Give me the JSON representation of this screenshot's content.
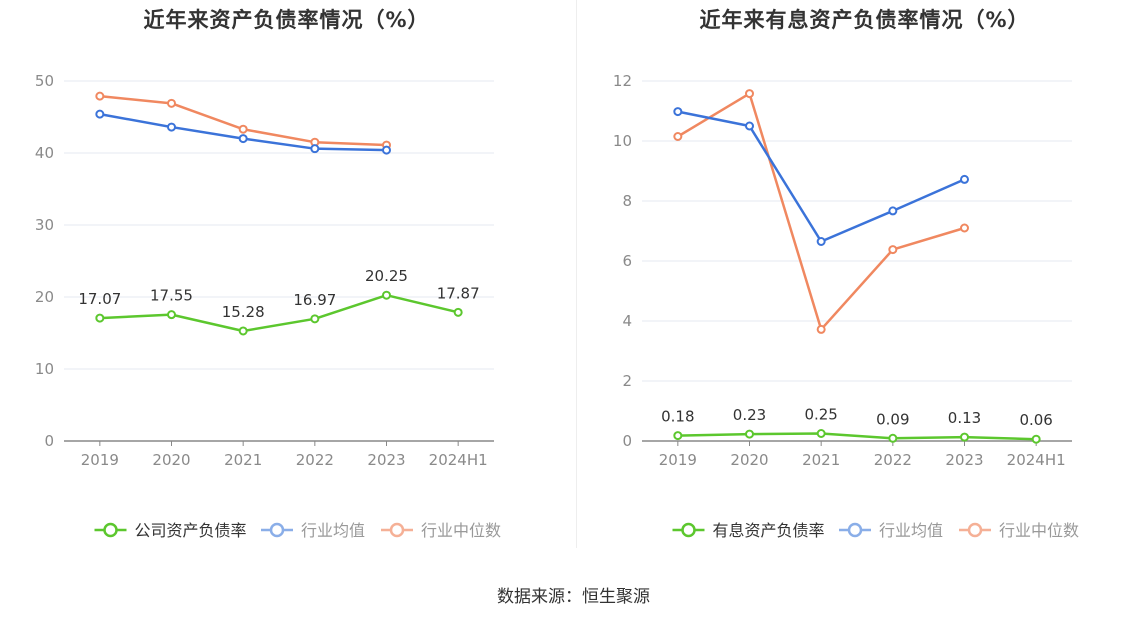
{
  "chart_data": [
    {
      "type": "line",
      "title": "近年来资产负债率情况（%）",
      "categories": [
        "2019",
        "2020",
        "2021",
        "2022",
        "2023",
        "2024H1"
      ],
      "ylim": [
        0,
        50
      ],
      "yticks": [
        0,
        10,
        20,
        30,
        40,
        50
      ],
      "grid": true,
      "legend_position": "bottom-center",
      "series": [
        {
          "name": "公司资产负债率",
          "color": "#5cc72e",
          "values": [
            17.07,
            17.55,
            15.28,
            16.97,
            20.25,
            17.87
          ],
          "labels": [
            "17.07",
            "17.55",
            "15.28",
            "16.97",
            "20.25",
            "17.87"
          ]
        },
        {
          "name": "行业均值",
          "color": "#3b73d9",
          "values": [
            45.4,
            43.6,
            42.0,
            40.6,
            40.4,
            null
          ]
        },
        {
          "name": "行业中位数",
          "color": "#f08860",
          "values": [
            47.9,
            46.9,
            43.3,
            41.5,
            41.1,
            null
          ]
        }
      ]
    },
    {
      "type": "line",
      "title": "近年来有息资产负债率情况（%）",
      "categories": [
        "2019",
        "2020",
        "2021",
        "2022",
        "2023",
        "2024H1"
      ],
      "ylim": [
        0,
        12
      ],
      "yticks": [
        0,
        2,
        4,
        6,
        8,
        10,
        12
      ],
      "grid": true,
      "legend_position": "bottom-center",
      "series": [
        {
          "name": "有息资产负债率",
          "color": "#5cc72e",
          "values": [
            0.18,
            0.23,
            0.25,
            0.09,
            0.13,
            0.06
          ],
          "labels": [
            "0.18",
            "0.23",
            "0.25",
            "0.09",
            "0.13",
            "0.06"
          ]
        },
        {
          "name": "行业均值",
          "color": "#3b73d9",
          "values": [
            10.98,
            10.5,
            6.65,
            7.67,
            8.72,
            null
          ]
        },
        {
          "name": "行业中位数",
          "color": "#f08860",
          "values": [
            10.15,
            11.58,
            3.72,
            6.38,
            7.1,
            null
          ]
        }
      ]
    }
  ],
  "source": "数据来源：恒生聚源"
}
